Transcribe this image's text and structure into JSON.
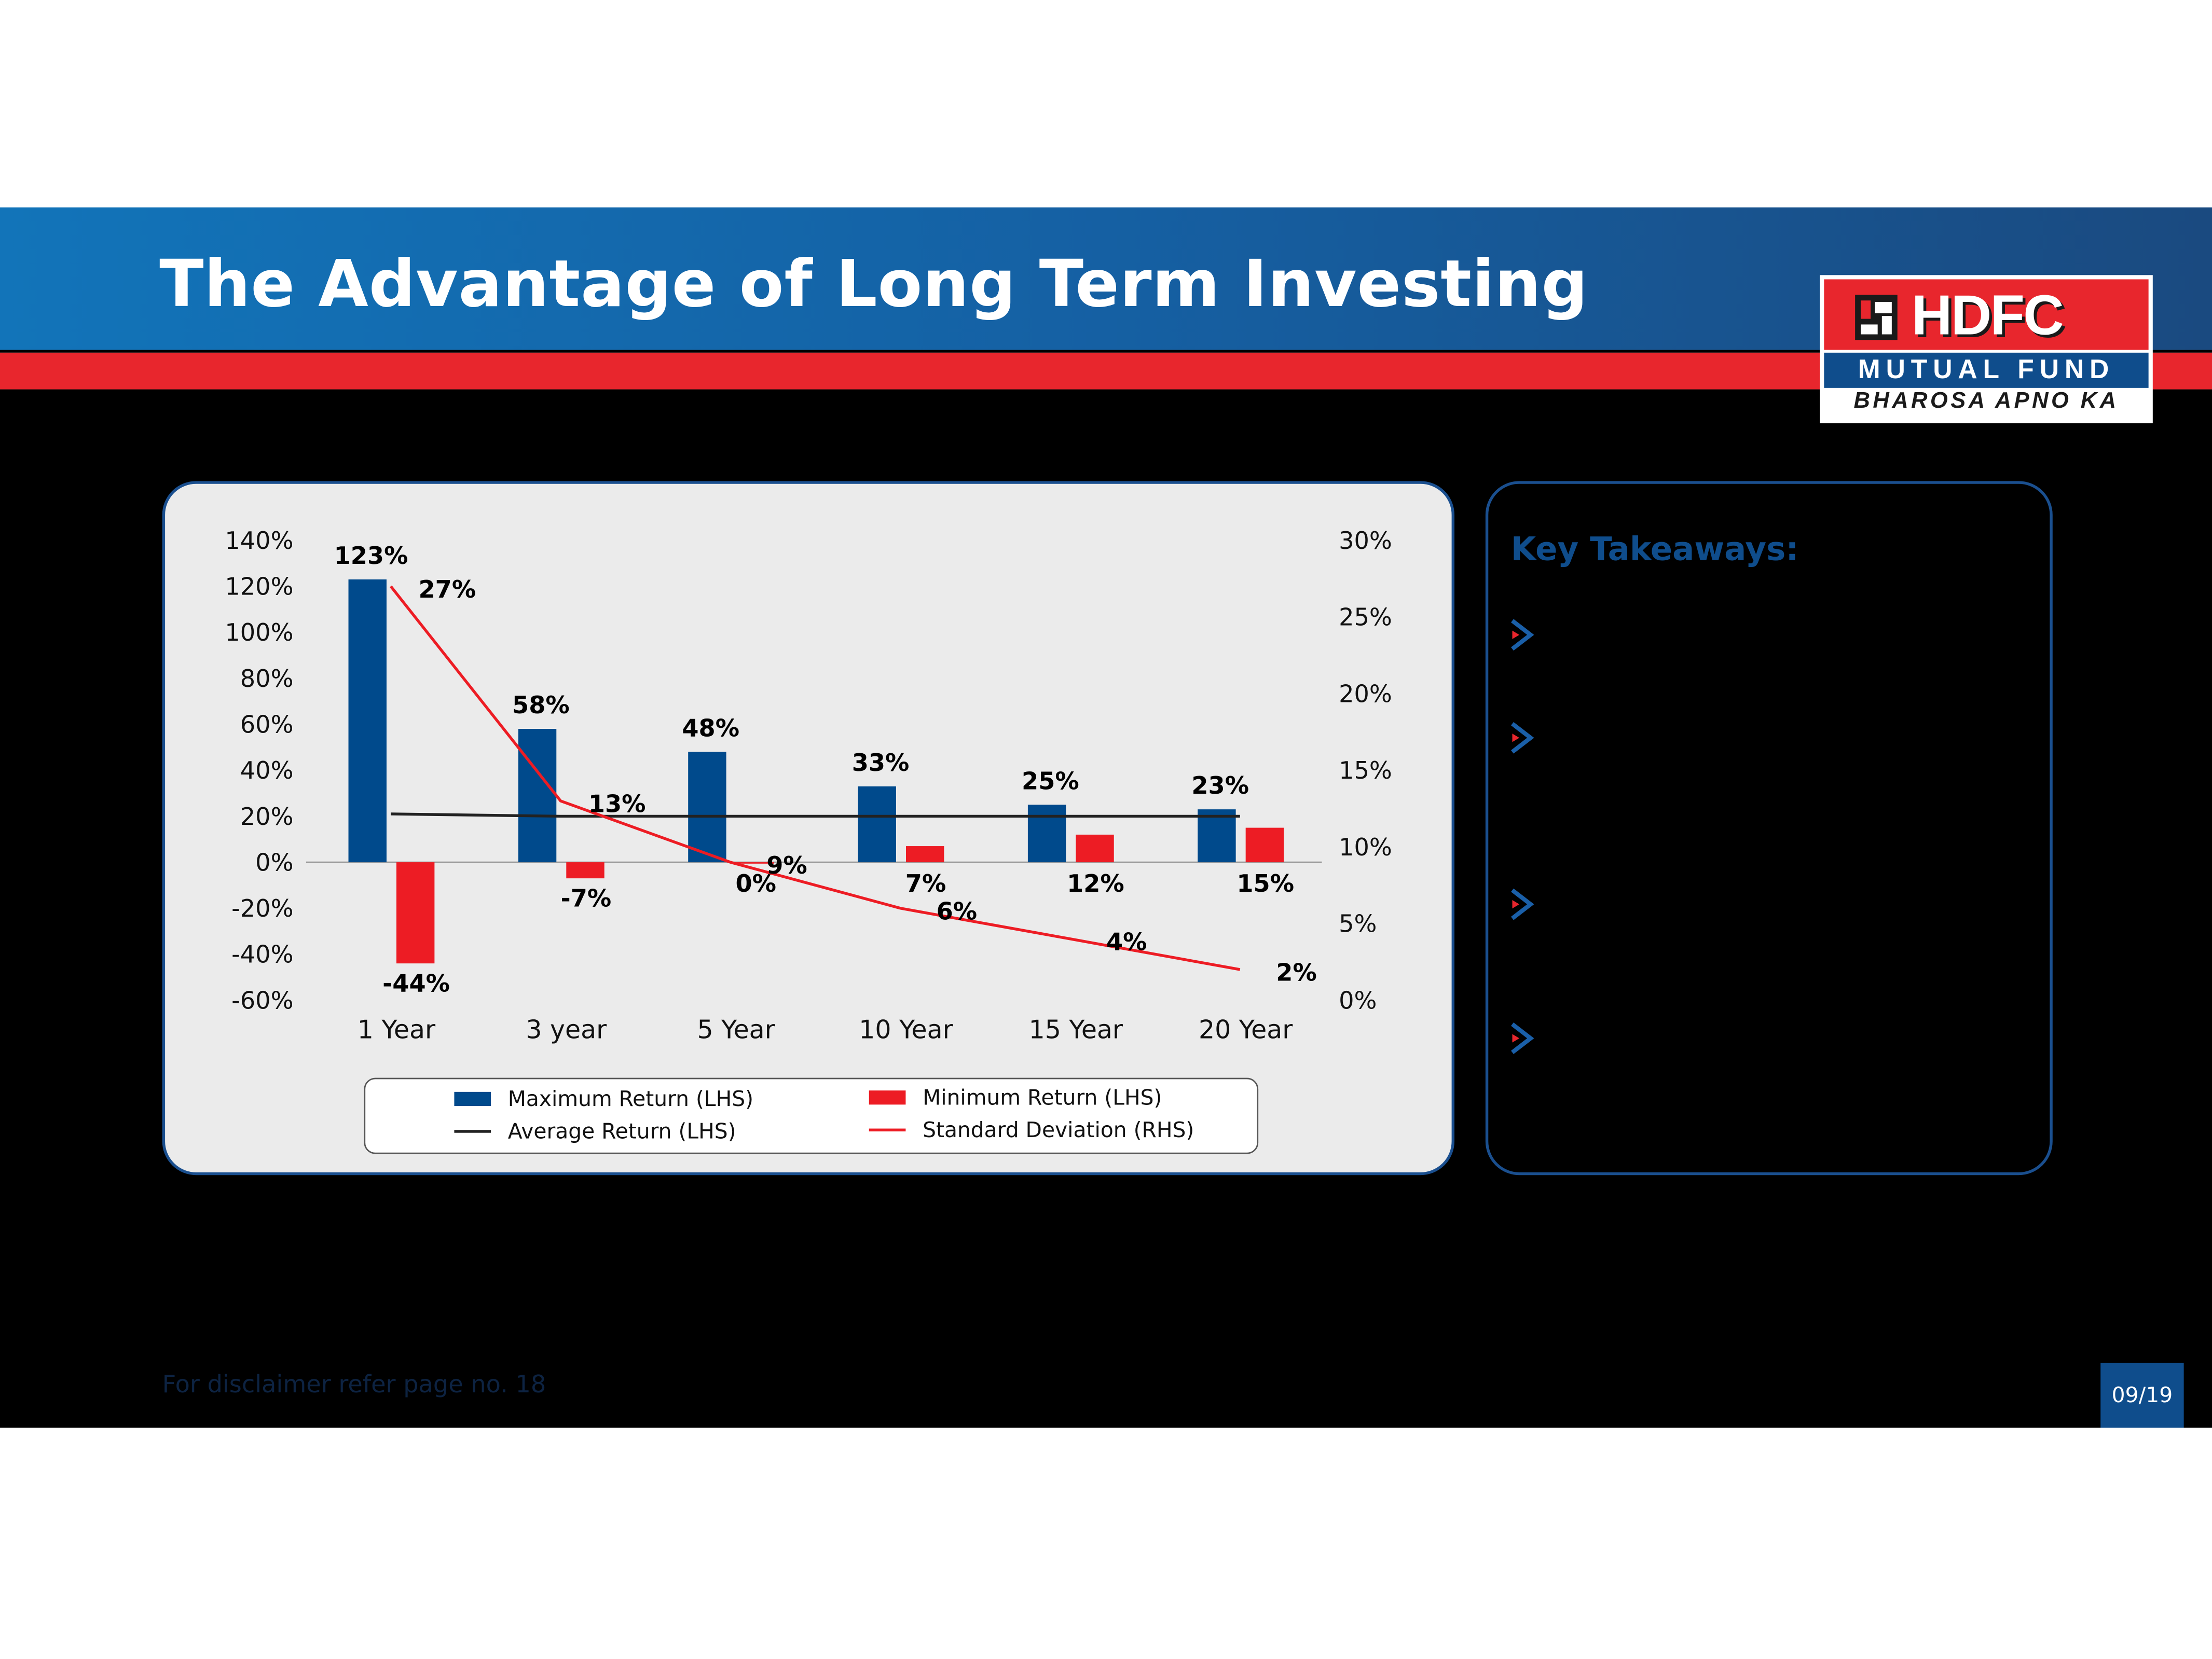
{
  "header": {
    "title": "The Advantage of Long Term Investing"
  },
  "logo": {
    "name": "HDFC",
    "subtitle": "MUTUAL FUND",
    "tagline": "BHAROSA APNO KA"
  },
  "colors": {
    "blue": "#0f4d8c",
    "red": "#e8262d",
    "max_bar": "#004a8c",
    "min_bar": "#ed1c24",
    "average_line": "#222222",
    "sd_line": "#ed1c24"
  },
  "chart_data": {
    "type": "bar",
    "categories": [
      "1 Year",
      "3 year",
      "5 Year",
      "10 Year",
      "15 Year",
      "20 Year"
    ],
    "y_left": {
      "ticks": [
        "140%",
        "120%",
        "100%",
        "80%",
        "60%",
        "40%",
        "20%",
        "0%",
        "-20%",
        "-40%",
        "-60%"
      ],
      "range": [
        -60,
        140
      ]
    },
    "y_right": {
      "ticks": [
        "30%",
        "25%",
        "20%",
        "15%",
        "10%",
        "5%",
        "0%"
      ],
      "range": [
        0,
        30
      ]
    },
    "series": [
      {
        "name": "Maximum Return (LHS)",
        "type": "bar",
        "axis": "left",
        "values": [
          123,
          58,
          48,
          33,
          25,
          23
        ],
        "labels": [
          "123%",
          "58%",
          "48%",
          "33%",
          "25%",
          "23%"
        ]
      },
      {
        "name": "Minimum Return (LHS)",
        "type": "bar",
        "axis": "left",
        "values": [
          -44,
          -7,
          0,
          7,
          12,
          15
        ],
        "labels": [
          "-44%",
          "-7%",
          "0%",
          "7%",
          "12%",
          "15%"
        ]
      },
      {
        "name": "Average Return (LHS)",
        "type": "line",
        "axis": "left",
        "values": [
          21,
          20,
          20,
          20,
          20,
          20
        ]
      },
      {
        "name": "Standard Deviation (RHS)",
        "type": "line",
        "axis": "right",
        "values": [
          27,
          13,
          9,
          6,
          4,
          2
        ],
        "labels": [
          "27%",
          "13%",
          "9%",
          "6%",
          "4%",
          "2%"
        ]
      }
    ],
    "legend": "bottom",
    "grid": false
  },
  "takeaways": {
    "title": "Key Takeaways:",
    "bullets": 4
  },
  "footer": {
    "disclaimer": "For disclaimer refer page no. 18",
    "page": "09/19"
  }
}
